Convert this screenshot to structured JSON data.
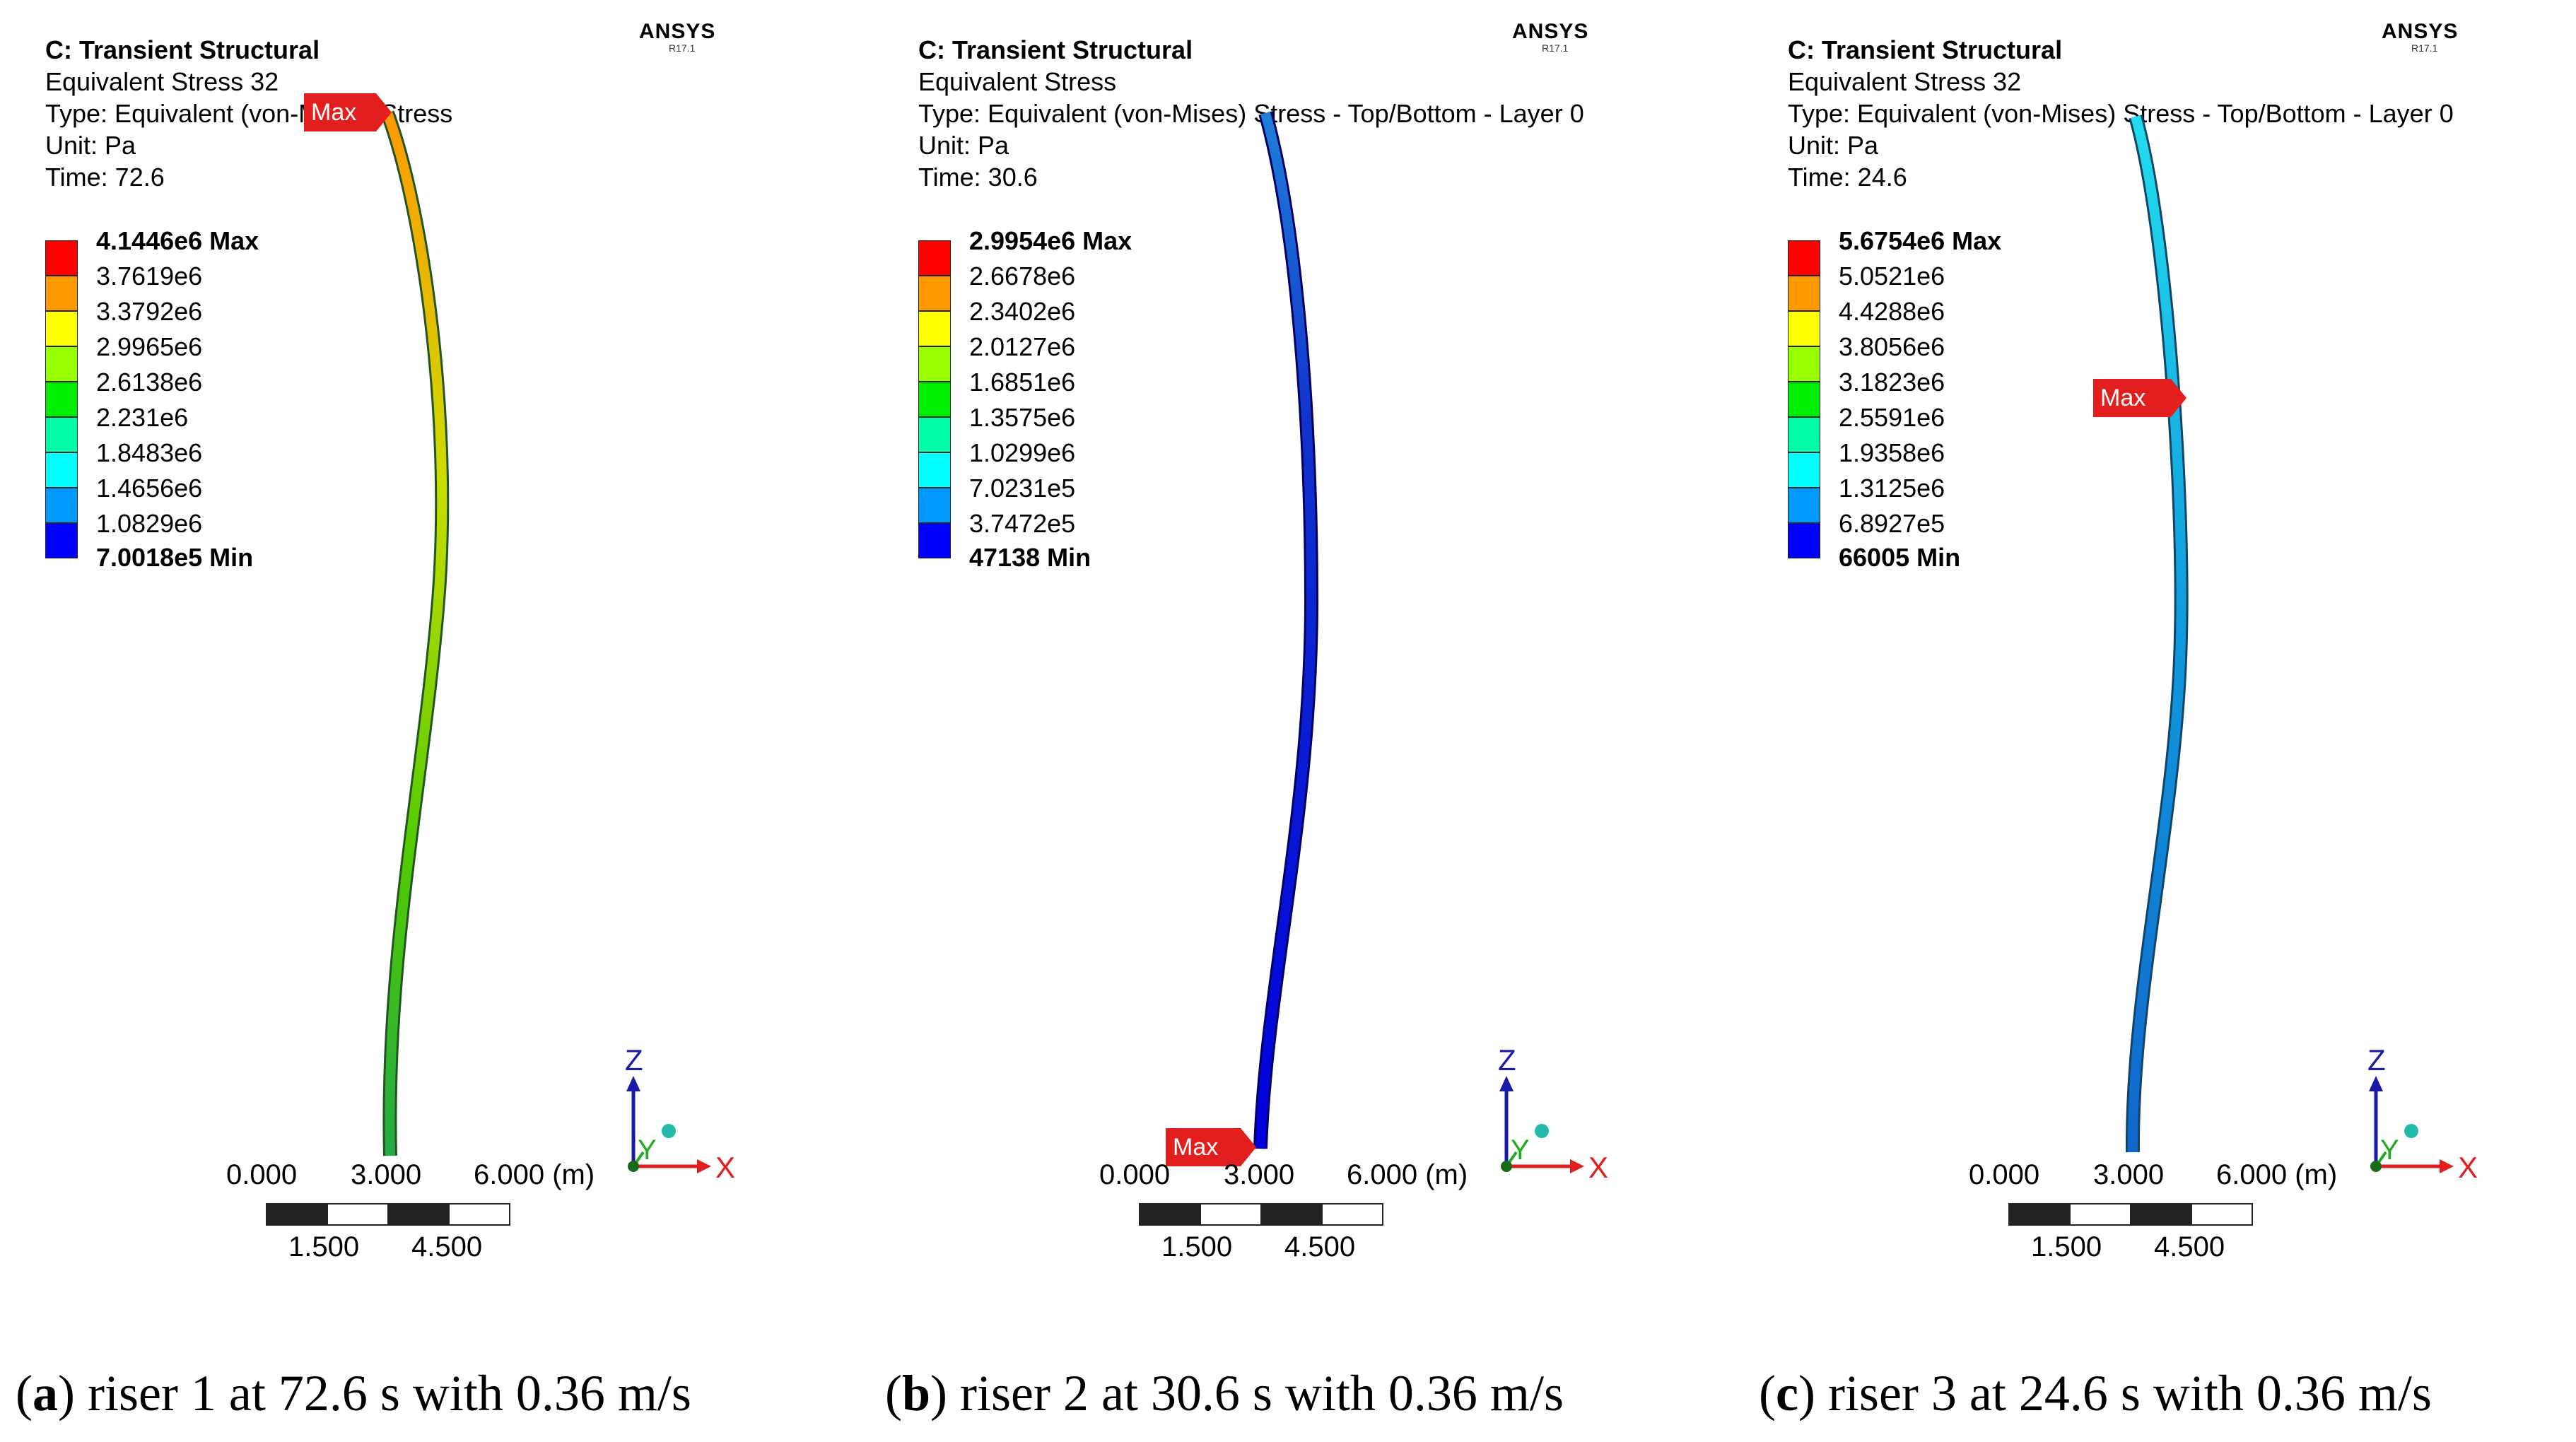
{
  "panels": [
    {
      "title": "C: Transient Structural",
      "result": "Equivalent Stress 32",
      "type_line": "Type: Equivalent (von-Mises) Stress",
      "unit": "Unit: Pa",
      "time": "Time: 72.6",
      "brand": "ANSYS",
      "version": "R17.1",
      "legend": [
        "4.1446e6 Max",
        "3.7619e6",
        "3.3792e6",
        "2.9965e6",
        "2.6138e6",
        "2.231e6",
        "1.8483e6",
        "1.4656e6",
        "1.0829e6",
        "7.0018e5 Min"
      ],
      "max_label": "Max",
      "scale_top": [
        "0.000",
        "3.000",
        "6.000 (m)"
      ],
      "scale_bottom": [
        "1.500",
        "4.500"
      ],
      "caption_letter": "a",
      "caption_text": " riser 1 at 72.6 s with 0.36 m/s"
    },
    {
      "title": "C: Transient Structural",
      "result": "Equivalent Stress",
      "type_line": "Type: Equivalent (von-Mises) Stress - Top/Bottom - Layer 0",
      "unit": "Unit: Pa",
      "time": "Time: 30.6",
      "brand": "ANSYS",
      "version": "R17.1",
      "legend": [
        "2.9954e6 Max",
        "2.6678e6",
        "2.3402e6",
        "2.0127e6",
        "1.6851e6",
        "1.3575e6",
        "1.0299e6",
        "7.0231e5",
        "3.7472e5",
        "47138 Min"
      ],
      "max_label": "Max",
      "scale_top": [
        "0.000",
        "3.000",
        "6.000 (m)"
      ],
      "scale_bottom": [
        "1.500",
        "4.500"
      ],
      "caption_letter": "b",
      "caption_text": " riser 2 at 30.6 s with 0.36 m/s"
    },
    {
      "title": "C: Transient Structural",
      "result": "Equivalent Stress 32",
      "type_line": "Type: Equivalent (von-Mises) Stress - Top/Bottom - Layer 0",
      "unit": "Unit: Pa",
      "time": "Time: 24.6",
      "brand": "ANSYS",
      "version": "R17.1",
      "legend": [
        "5.6754e6 Max",
        "5.0521e6",
        "4.4288e6",
        "3.8056e6",
        "3.1823e6",
        "2.5591e6",
        "1.9358e6",
        "1.3125e6",
        "6.8927e5",
        "66005 Min"
      ],
      "max_label": "Max",
      "scale_top": [
        "0.000",
        "3.000",
        "6.000 (m)"
      ],
      "scale_bottom": [
        "1.500",
        "4.500"
      ],
      "caption_letter": "c",
      "caption_text": " riser 3 at 24.6 s with 0.36 m/s"
    }
  ],
  "axes": {
    "z": "Z",
    "y": "Y",
    "x": "X"
  },
  "colors": {
    "legend_scale": [
      "#ff0000",
      "#ff9900",
      "#ffff00",
      "#99ff00",
      "#00ee00",
      "#00ffaa",
      "#00ffff",
      "#0099ff",
      "#0000ff"
    ],
    "riser1": [
      "#ff9900",
      "#ccdd00",
      "#55cc00",
      "#22aa44"
    ],
    "riser2": [
      "#1f7fd8",
      "#1133cc",
      "#0000dd"
    ],
    "riser3": [
      "#22ddee",
      "#1199dd",
      "#1166cc"
    ],
    "max_tag": "#e31e1e"
  }
}
